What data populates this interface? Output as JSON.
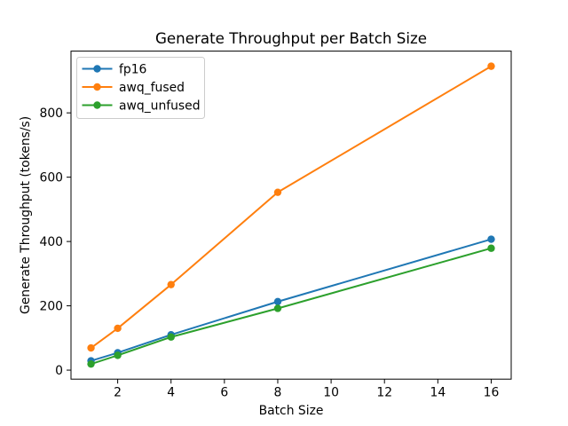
{
  "chart_data": {
    "type": "line",
    "title": "Generate Throughput per Batch Size",
    "xlabel": "Batch Size",
    "ylabel": "Generate Throughput (tokens/s)",
    "x": [
      1,
      2,
      4,
      8,
      16
    ],
    "series": [
      {
        "name": "fp16",
        "color": "#1f77b4",
        "values": [
          29,
          54,
          110,
          213,
          407
        ]
      },
      {
        "name": "awq_fused",
        "color": "#ff7f0e",
        "values": [
          69,
          130,
          266,
          553,
          945
        ]
      },
      {
        "name": "awq_unfused",
        "color": "#2ca02c",
        "values": [
          19,
          46,
          103,
          192,
          379
        ]
      }
    ],
    "xticks": [
      2,
      4,
      6,
      8,
      10,
      12,
      14,
      16
    ],
    "yticks": [
      0,
      200,
      400,
      600,
      800
    ],
    "xlim": [
      0.25,
      16.75
    ],
    "ylim": [
      -28,
      992
    ],
    "grid": false,
    "marker": "o",
    "legend": {
      "position": "upper-left",
      "entries": [
        "fp16",
        "awq_fused",
        "awq_unfused"
      ]
    },
    "colors": {
      "background": "#ffffff",
      "text": "#000000",
      "axis": "#000000",
      "legend_border": "#cccccc"
    }
  }
}
